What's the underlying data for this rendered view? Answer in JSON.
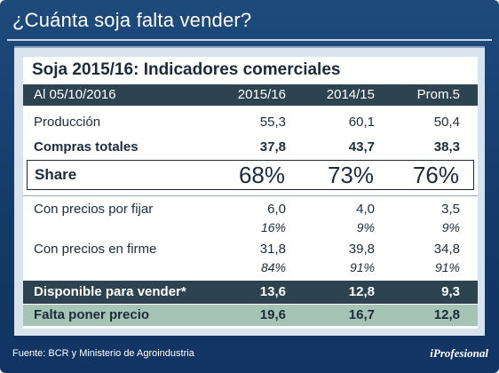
{
  "header": {
    "title": "¿Cuánta soja falta vender?"
  },
  "card": {
    "subtitle": "Soja 2015/16: Indicadores comerciales"
  },
  "table": {
    "columns": [
      "Al 05/10/2016",
      "2015/16",
      "2014/15",
      "Prom.5"
    ],
    "rows": {
      "produccion": [
        "Producción",
        "55,3",
        "60,1",
        "50,4"
      ],
      "compras": [
        "Compras totales",
        "37,8",
        "43,7",
        "38,3"
      ],
      "share": [
        "Share",
        "68%",
        "73%",
        "76%"
      ],
      "fijar": [
        "Con precios por fijar",
        "6,0",
        "4,0",
        "3,5"
      ],
      "fijar_pct": [
        "",
        "16%",
        "9%",
        "9%"
      ],
      "firme": [
        "Con precios en firme",
        "31,8",
        "39,8",
        "34,8"
      ],
      "firme_pct": [
        "",
        "84%",
        "91%",
        "91%"
      ],
      "disponible": [
        "Disponible para vender*",
        "13,6",
        "12,8",
        "9,3"
      ],
      "falta": [
        "Falta poner precio",
        "19,6",
        "16,7",
        "12,8"
      ]
    }
  },
  "footer": {
    "source": "Fuente: BCR y Ministerio de Agroindustria",
    "brand": "iProfesional"
  },
  "colors": {
    "frame": "#1a4273",
    "header_row": "#2d4350",
    "falta_row": "#a6c4b6"
  }
}
